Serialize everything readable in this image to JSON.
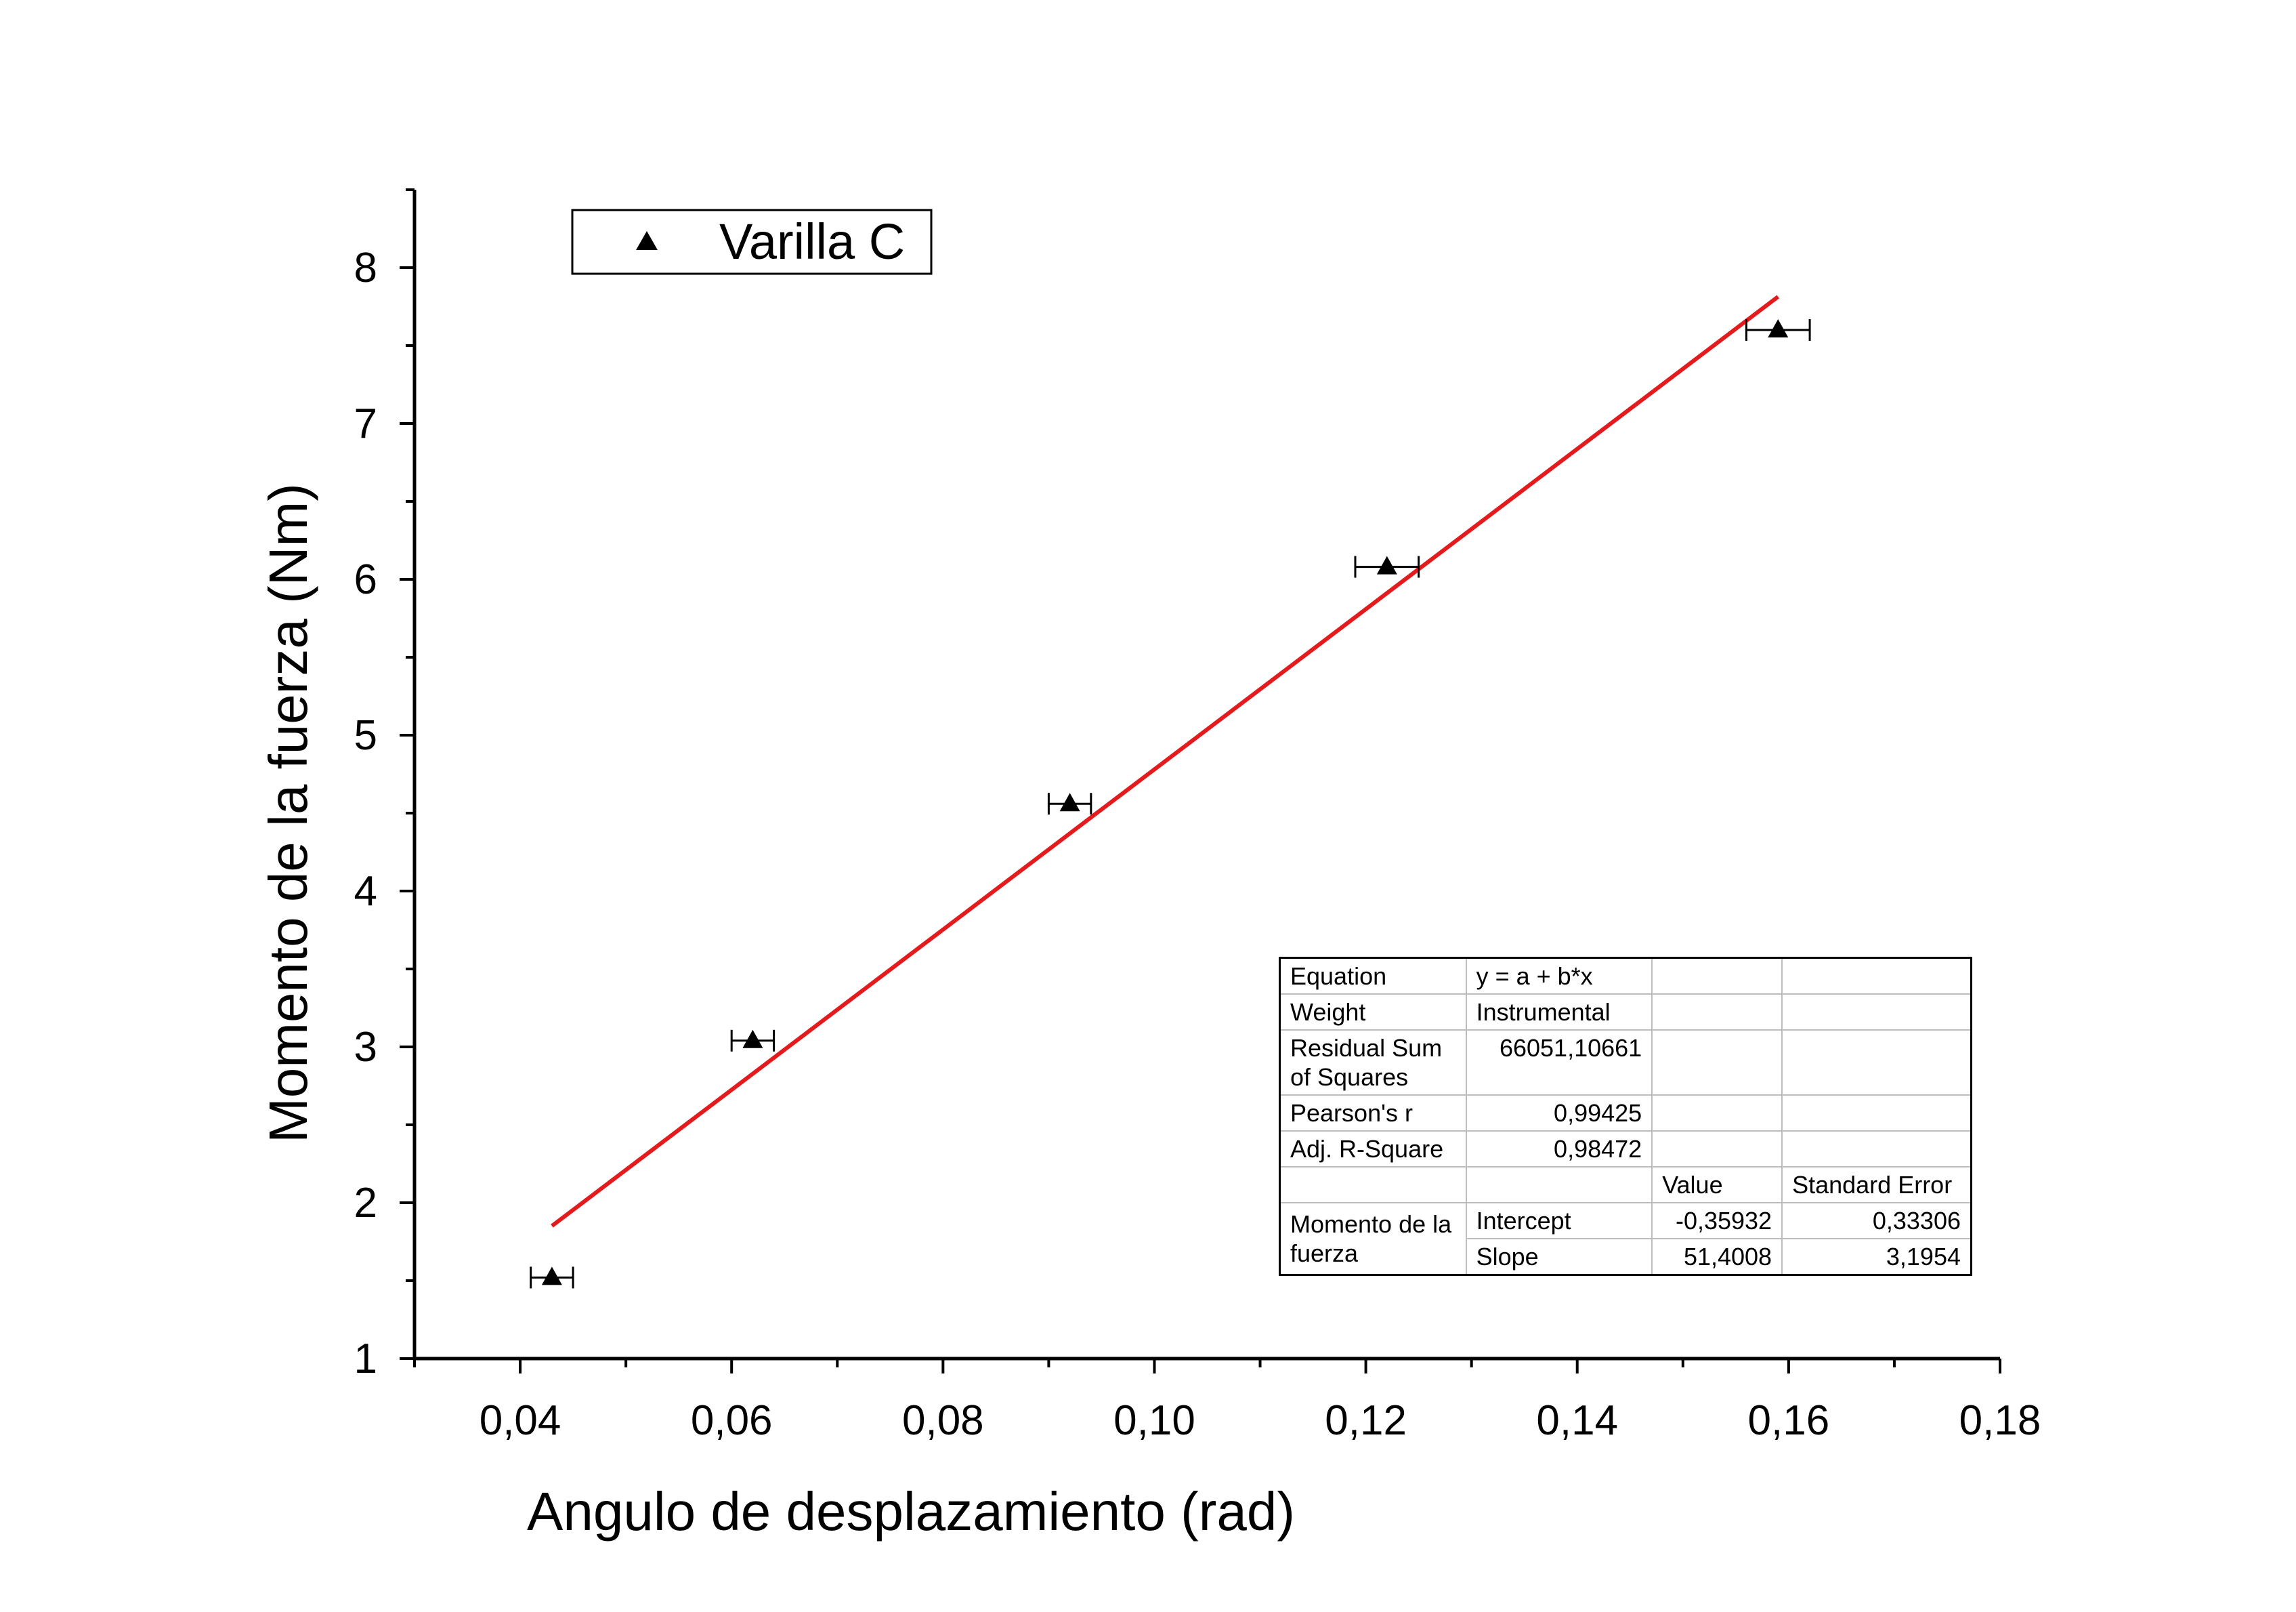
{
  "chart_data": {
    "type": "scatter",
    "xlabel": "Angulo de desplazamiento (rad)",
    "ylabel": "Momento de la fuerza (Nm)",
    "xlim": [
      0.03,
      0.18
    ],
    "ylim": [
      1,
      8.5
    ],
    "x_major_ticks": [
      0.04,
      0.06,
      0.08,
      0.1,
      0.12,
      0.14,
      0.16,
      0.18
    ],
    "x_tick_labels": [
      "0,04",
      "0,06",
      "0,08",
      "0,10",
      "0,12",
      "0,14",
      "0,16",
      "0,18"
    ],
    "y_major_ticks": [
      1,
      2,
      3,
      4,
      5,
      6,
      7,
      8
    ],
    "y_tick_labels": [
      "1",
      "2",
      "3",
      "4",
      "5",
      "6",
      "7",
      "8"
    ],
    "grid": false,
    "legend": {
      "position": "top-left",
      "entries": [
        "Varilla C"
      ]
    },
    "series": [
      {
        "name": "Varilla C",
        "marker": "triangle",
        "color": "#000000",
        "x": [
          0.043,
          0.062,
          0.092,
          0.122,
          0.159
        ],
        "y": [
          1.52,
          3.04,
          4.56,
          6.08,
          7.6
        ],
        "x_error": [
          0.002,
          0.002,
          0.002,
          0.003,
          0.003
        ]
      }
    ],
    "fit": {
      "type": "line",
      "color": "#e41a1c",
      "intercept": -0.35932,
      "slope": 51.4008,
      "x_range": [
        0.043,
        0.159
      ]
    }
  },
  "fit_table": {
    "equation_label": "Equation",
    "equation_value": "y = a + b*x",
    "weight_label": "Weight",
    "weight_value": "Instrumental",
    "rss_label_line1": "Residual Sum",
    "rss_label_line2": "of Squares",
    "rss_value": "66051,10661",
    "pearson_label": "Pearson's r",
    "pearson_value": "0,99425",
    "adjr2_label": "Adj. R-Square",
    "adjr2_value": "0,98472",
    "value_header": "Value",
    "se_header": "Standard Error",
    "group_label_line1": "Momento de la",
    "group_label_line2": "fuerza",
    "intercept_label": "Intercept",
    "intercept_value": "-0,35932",
    "intercept_se": "0,33306",
    "slope_label": "Slope",
    "slope_value": "51,4008",
    "slope_se": "3,1954"
  }
}
